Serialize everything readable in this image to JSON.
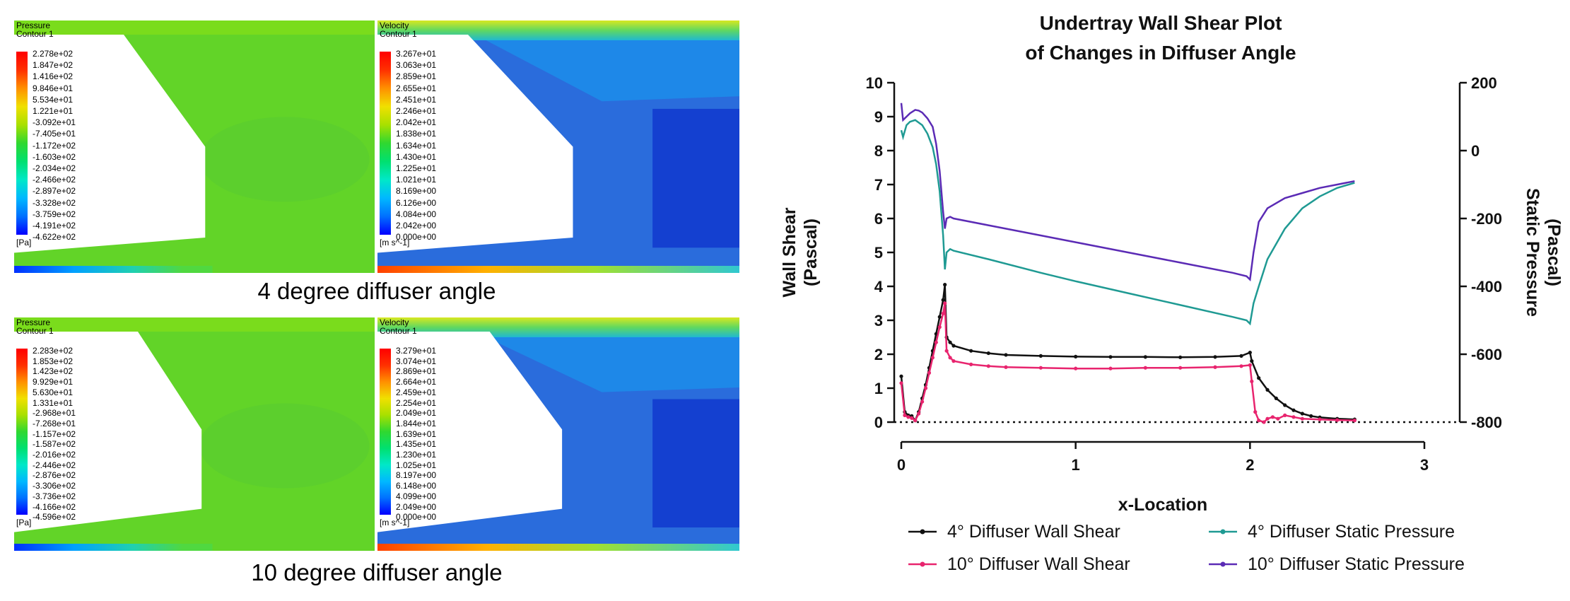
{
  "colors": {
    "wall4": "#111111",
    "wall10": "#e8246e",
    "sp4": "#1f9a93",
    "sp10": "#5b2bb5",
    "grad": [
      "#0000ff",
      "#0070ff",
      "#00b8ff",
      "#00e8c8",
      "#00e070",
      "#30d830",
      "#a8e000",
      "#f0e000",
      "#ff9000",
      "#ff3000",
      "#ff0000"
    ]
  },
  "panels": [
    {
      "id": "p4",
      "pressure": {
        "title": "Pressure",
        "subtitle": "Contour 1",
        "unit": "[Pa]",
        "ticks": [
          "2.278e+02",
          "1.847e+02",
          "1.416e+02",
          "9.846e+01",
          "5.534e+01",
          "1.221e+01",
          "-3.092e+01",
          "-7.405e+01",
          "-1.172e+02",
          "-1.603e+02",
          "-2.034e+02",
          "-2.466e+02",
          "-2.897e+02",
          "-3.328e+02",
          "-3.759e+02",
          "-4.191e+02",
          "-4.622e+02"
        ]
      },
      "velocity": {
        "title": "Velocity",
        "subtitle": "Contour 1",
        "unit": "[m s^-1]",
        "ticks": [
          "3.267e+01",
          "3.063e+01",
          "2.859e+01",
          "2.655e+01",
          "2.451e+01",
          "2.246e+01",
          "2.042e+01",
          "1.838e+01",
          "1.634e+01",
          "1.430e+01",
          "1.225e+01",
          "1.021e+01",
          "8.169e+00",
          "6.126e+00",
          "4.084e+00",
          "2.042e+00",
          "0.000e+00"
        ]
      },
      "caption": "4 degree diffuser angle"
    },
    {
      "id": "p10",
      "pressure": {
        "title": "Pressure",
        "subtitle": "Contour 1",
        "unit": "[Pa]",
        "ticks": [
          "2.283e+02",
          "1.853e+02",
          "1.423e+02",
          "9.929e+01",
          "5.630e+01",
          "1.331e+01",
          "-2.968e+01",
          "-7.268e+01",
          "-1.157e+02",
          "-1.587e+02",
          "-2.016e+02",
          "-2.446e+02",
          "-2.876e+02",
          "-3.306e+02",
          "-3.736e+02",
          "-4.166e+02",
          "-4.596e+02"
        ]
      },
      "velocity": {
        "title": "Velocity",
        "subtitle": "Contour 1",
        "unit": "[m s^-1]",
        "ticks": [
          "3.279e+01",
          "3.074e+01",
          "2.869e+01",
          "2.664e+01",
          "2.459e+01",
          "2.254e+01",
          "2.049e+01",
          "1.844e+01",
          "1.639e+01",
          "1.435e+01",
          "1.230e+01",
          "1.025e+01",
          "8.197e+00",
          "6.148e+00",
          "4.099e+00",
          "2.049e+00",
          "0.000e+00"
        ]
      },
      "caption": "10 degree diffuser angle"
    }
  ],
  "chart_data": {
    "type": "line",
    "title": "Undertray Wall Shear Plot",
    "subtitle": "of Changes in Diffuser Angle",
    "xlabel": "x-Location",
    "ylabel_left": [
      "Wall Shear",
      "(Pascal)"
    ],
    "ylabel_right": [
      "Static Pressure",
      "(Pascal)"
    ],
    "xlim": [
      0,
      3
    ],
    "ylim_left": [
      0,
      10
    ],
    "ylim_right": [
      -800,
      200
    ],
    "xticks": [
      "0",
      "1",
      "2",
      "3"
    ],
    "yticks_left": [
      "0",
      "1",
      "2",
      "3",
      "4",
      "5",
      "6",
      "7",
      "8",
      "9",
      "10"
    ],
    "yticks_right": [
      "200",
      "0",
      "-200",
      "-400",
      "-600",
      "-800"
    ],
    "legend_position": "bottom",
    "series": [
      {
        "name": "4° Diffuser Wall Shear",
        "axis": "left",
        "markers": true,
        "x": [
          0,
          0.02,
          0.04,
          0.06,
          0.08,
          0.1,
          0.12,
          0.14,
          0.16,
          0.18,
          0.2,
          0.22,
          0.24,
          0.25,
          0.26,
          0.28,
          0.3,
          0.4,
          0.5,
          0.6,
          0.8,
          1.0,
          1.2,
          1.4,
          1.6,
          1.8,
          1.95,
          2.0,
          2.01,
          2.05,
          2.1,
          2.15,
          2.2,
          2.25,
          2.3,
          2.35,
          2.4,
          2.5,
          2.6
        ],
        "y": [
          1.35,
          0.3,
          0.2,
          0.18,
          0.05,
          0.3,
          0.7,
          1.1,
          1.6,
          2.1,
          2.6,
          3.1,
          3.6,
          4.05,
          2.5,
          2.35,
          2.25,
          2.1,
          2.03,
          1.98,
          1.95,
          1.93,
          1.92,
          1.92,
          1.91,
          1.92,
          1.95,
          2.05,
          1.8,
          1.3,
          0.95,
          0.7,
          0.5,
          0.35,
          0.25,
          0.18,
          0.14,
          0.1,
          0.08
        ]
      },
      {
        "name": "10° Diffuser Wall Shear",
        "axis": "left",
        "markers": true,
        "x": [
          0,
          0.02,
          0.04,
          0.06,
          0.08,
          0.1,
          0.12,
          0.14,
          0.16,
          0.18,
          0.2,
          0.22,
          0.24,
          0.25,
          0.26,
          0.28,
          0.3,
          0.4,
          0.5,
          0.6,
          0.8,
          1.0,
          1.2,
          1.4,
          1.6,
          1.8,
          1.95,
          2.0,
          2.01,
          2.03,
          2.05,
          2.08,
          2.1,
          2.13,
          2.16,
          2.2,
          2.25,
          2.3,
          2.4,
          2.5,
          2.6
        ],
        "y": [
          1.15,
          0.2,
          0.15,
          0.12,
          0.05,
          0.25,
          0.6,
          1.0,
          1.45,
          1.9,
          2.35,
          2.8,
          3.2,
          3.5,
          2.1,
          1.9,
          1.8,
          1.7,
          1.65,
          1.62,
          1.6,
          1.58,
          1.58,
          1.6,
          1.6,
          1.62,
          1.65,
          1.68,
          1.2,
          0.3,
          0.05,
          0.0,
          0.1,
          0.15,
          0.1,
          0.2,
          0.15,
          0.1,
          0.08,
          0.06,
          0.05
        ]
      },
      {
        "name": "4° Diffuser Static Pressure",
        "axis": "right",
        "markers": false,
        "x": [
          0,
          0.01,
          0.03,
          0.05,
          0.08,
          0.12,
          0.15,
          0.18,
          0.2,
          0.22,
          0.24,
          0.25,
          0.26,
          0.28,
          0.3,
          0.5,
          0.8,
          1.0,
          1.3,
          1.6,
          1.9,
          1.98,
          2.0,
          2.02,
          2.05,
          2.1,
          2.2,
          2.3,
          2.4,
          2.5,
          2.6
        ],
        "y": [
          60,
          40,
          75,
          85,
          90,
          75,
          50,
          10,
          -40,
          -120,
          -250,
          -350,
          -300,
          -290,
          -295,
          -320,
          -360,
          -385,
          -420,
          -455,
          -490,
          -500,
          -510,
          -450,
          -400,
          -320,
          -230,
          -170,
          -135,
          -110,
          -95
        ]
      },
      {
        "name": "10° Diffuser Static Pressure",
        "axis": "right",
        "markers": false,
        "x": [
          0,
          0.01,
          0.03,
          0.05,
          0.08,
          0.1,
          0.12,
          0.15,
          0.18,
          0.2,
          0.22,
          0.24,
          0.25,
          0.26,
          0.28,
          0.3,
          0.5,
          0.8,
          1.0,
          1.3,
          1.6,
          1.9,
          1.98,
          2.0,
          2.02,
          2.05,
          2.1,
          2.2,
          2.3,
          2.4,
          2.5,
          2.6
        ],
        "y": [
          140,
          90,
          100,
          110,
          120,
          118,
          112,
          95,
          70,
          20,
          -60,
          -180,
          -230,
          -200,
          -195,
          -200,
          -220,
          -250,
          -270,
          -300,
          -330,
          -360,
          -370,
          -380,
          -300,
          -210,
          -170,
          -140,
          -125,
          -110,
          -100,
          -90
        ]
      }
    ]
  }
}
